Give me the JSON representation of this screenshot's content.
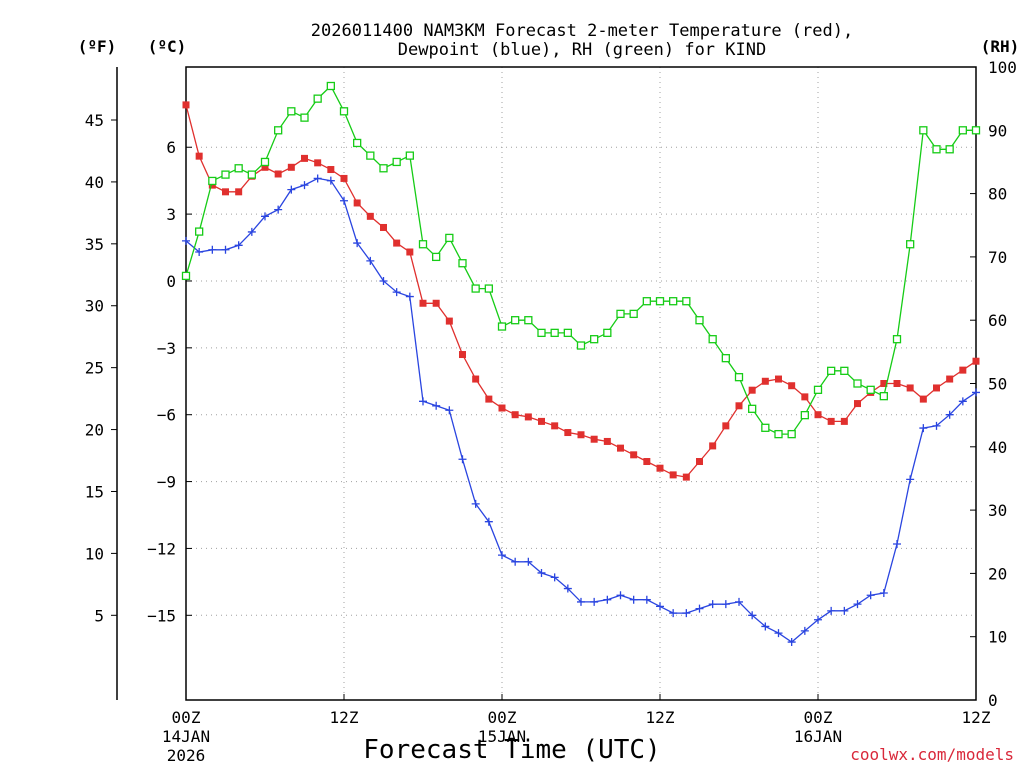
{
  "chart_data": {
    "type": "line",
    "title_lines": [
      "2026011400 NAM3KM Forecast 2-meter Temperature (red),",
      "Dewpoint (blue), RH (green) for KIND"
    ],
    "xlabel": "Forecast Time (UTC)",
    "credit": "coolwx.com/models",
    "x_ticks": [
      {
        "hour": 0,
        "lines": [
          "00Z",
          "14JAN",
          "2026"
        ]
      },
      {
        "hour": 12,
        "lines": [
          "12Z"
        ]
      },
      {
        "hour": 24,
        "lines": [
          "00Z",
          "15JAN"
        ]
      },
      {
        "hour": 36,
        "lines": [
          "12Z"
        ]
      },
      {
        "hour": 48,
        "lines": [
          "00Z",
          "16JAN"
        ]
      },
      {
        "hour": 60,
        "lines": [
          "12Z"
        ]
      }
    ],
    "xlim": [
      0,
      60
    ],
    "celsius_axis": {
      "unit_label": "(ºC)",
      "lim": [
        -18.8,
        9.6
      ],
      "ticks": [
        6,
        3,
        0,
        -3,
        -6,
        -9,
        -12,
        -15
      ],
      "tick_labels": [
        "6",
        "3",
        "0",
        "−3",
        "−6",
        "−9",
        "−12",
        "−15"
      ]
    },
    "fahrenheit_axis": {
      "unit_label": "(ºF)",
      "ticks": [
        45,
        40,
        35,
        30,
        25,
        20,
        15,
        10,
        5
      ]
    },
    "rh_axis": {
      "unit_label": "(RH)",
      "lim": [
        0,
        100
      ],
      "ticks": [
        100,
        90,
        80,
        70,
        60,
        50,
        40,
        30,
        20,
        10,
        0
      ]
    },
    "hours": [
      0,
      1,
      2,
      3,
      4,
      5,
      6,
      7,
      8,
      9,
      10,
      11,
      12,
      13,
      14,
      15,
      16,
      17,
      18,
      19,
      20,
      21,
      22,
      23,
      24,
      25,
      26,
      27,
      28,
      29,
      30,
      31,
      32,
      33,
      34,
      35,
      36,
      37,
      38,
      39,
      40,
      41,
      42,
      43,
      44,
      45,
      46,
      47,
      48,
      49,
      50,
      51,
      52,
      53,
      54,
      55,
      56,
      57,
      58,
      59,
      60
    ],
    "series": [
      {
        "name": "2-meter Temperature",
        "unit": "C",
        "color": "#e0302e",
        "marker": "filled-square",
        "values": [
          7.9,
          5.6,
          4.3,
          4.0,
          4.0,
          4.7,
          5.1,
          4.8,
          5.1,
          5.5,
          5.3,
          5.0,
          4.6,
          3.5,
          2.9,
          2.4,
          1.7,
          1.3,
          -1.0,
          -1.0,
          -1.8,
          -3.3,
          -4.4,
          -5.3,
          -5.7,
          -6.0,
          -6.1,
          -6.3,
          -6.5,
          -6.8,
          -6.9,
          -7.1,
          -7.2,
          -7.5,
          -7.8,
          -8.1,
          -8.4,
          -8.7,
          -8.8,
          -8.1,
          -7.4,
          -6.5,
          -5.6,
          -4.9,
          -4.5,
          -4.4,
          -4.7,
          -5.2,
          -6.0,
          -6.3,
          -6.3,
          -5.5,
          -5.0,
          -4.6,
          -4.6,
          -4.8,
          -5.3,
          -4.8,
          -4.4,
          -4.0,
          -3.6
        ]
      },
      {
        "name": "Dewpoint",
        "unit": "C",
        "color": "#2a45e0",
        "marker": "plus",
        "values": [
          1.8,
          1.3,
          1.4,
          1.4,
          1.6,
          2.2,
          2.9,
          3.2,
          4.1,
          4.3,
          4.6,
          4.5,
          3.6,
          1.7,
          0.9,
          0.0,
          -0.5,
          -0.7,
          -5.4,
          -5.6,
          -5.8,
          -8.0,
          -10.0,
          -10.8,
          -12.3,
          -12.6,
          -12.6,
          -13.1,
          -13.3,
          -13.8,
          -14.4,
          -14.4,
          -14.3,
          -14.1,
          -14.3,
          -14.3,
          -14.6,
          -14.9,
          -14.9,
          -14.7,
          -14.5,
          -14.5,
          -14.4,
          -15.0,
          -15.5,
          -15.8,
          -16.2,
          -15.7,
          -15.2,
          -14.8,
          -14.8,
          -14.5,
          -14.1,
          -14.0,
          -11.8,
          -8.9,
          -6.6,
          -6.5,
          -6.0,
          -5.4,
          -5.0
        ]
      },
      {
        "name": "RH",
        "unit": "%",
        "color": "#16cc16",
        "marker": "open-square",
        "values": [
          67,
          74,
          82,
          83,
          84,
          83,
          85,
          90,
          93,
          92,
          95,
          97,
          93,
          88,
          86,
          84,
          85,
          86,
          72,
          70,
          73,
          69,
          65,
          65,
          59,
          60,
          60,
          58,
          58,
          58,
          56,
          57,
          58,
          61,
          61,
          63,
          63,
          63,
          63,
          60,
          57,
          54,
          51,
          46,
          43,
          42,
          42,
          45,
          49,
          52,
          52,
          50,
          49,
          48,
          57,
          72,
          90,
          87,
          87,
          90,
          90
        ]
      }
    ]
  }
}
